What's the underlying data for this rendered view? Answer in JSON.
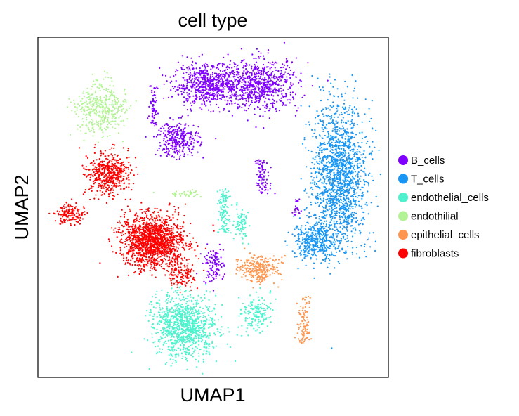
{
  "chart_data": {
    "type": "scatter",
    "title": "cell type",
    "xlabel": "UMAP1",
    "ylabel": "UMAP2",
    "xlim": [
      0,
      100
    ],
    "ylim": [
      0,
      100
    ],
    "ticks": "none",
    "grid": false,
    "legend_position": "right",
    "series": [
      {
        "name": "B_cells",
        "color": "#8000ff",
        "clusters": [
          {
            "cx": 49,
            "cy": 86,
            "sx": 7,
            "sy": 4,
            "n": 700,
            "shape": "blob"
          },
          {
            "cx": 64,
            "cy": 86,
            "sx": 7,
            "sy": 5,
            "n": 650,
            "shape": "blob"
          },
          {
            "cx": 40,
            "cy": 70,
            "sx": 4,
            "sy": 3.5,
            "n": 300,
            "shape": "blob"
          },
          {
            "cx": 33,
            "cy": 80,
            "sx": 0.7,
            "sy": 6,
            "n": 70,
            "shape": "strand"
          },
          {
            "cx": 64,
            "cy": 59,
            "sx": 1.2,
            "sy": 5,
            "n": 90,
            "shape": "strand"
          },
          {
            "cx": 50,
            "cy": 33,
            "sx": 2,
            "sy": 3.5,
            "n": 110,
            "shape": "blob"
          },
          {
            "cx": 74,
            "cy": 50,
            "sx": 0.8,
            "sy": 2.5,
            "n": 25,
            "shape": "strand"
          }
        ]
      },
      {
        "name": "T_cells",
        "color": "#1996f3",
        "clusters": [
          {
            "cx": 86,
            "cy": 59,
            "sx": 5,
            "sy": 14,
            "n": 1600,
            "shape": "blob"
          },
          {
            "cx": 79,
            "cy": 40,
            "sx": 4,
            "sy": 4,
            "n": 400,
            "shape": "blob"
          }
        ]
      },
      {
        "name": "endothelial_cells",
        "color": "#4df3ce",
        "clusters": [
          {
            "cx": 42,
            "cy": 15,
            "sx": 6,
            "sy": 6,
            "n": 1000,
            "shape": "blob"
          },
          {
            "cx": 53,
            "cy": 49,
            "sx": 1,
            "sy": 6.5,
            "n": 120,
            "shape": "strand"
          },
          {
            "cx": 58,
            "cy": 45,
            "sx": 1.3,
            "sy": 3,
            "n": 80,
            "shape": "blob"
          },
          {
            "cx": 62,
            "cy": 19,
            "sx": 3,
            "sy": 3.5,
            "n": 160,
            "shape": "blob"
          }
        ]
      },
      {
        "name": "endothilial",
        "color": "#b3f396",
        "clusters": [
          {
            "cx": 18,
            "cy": 79,
            "sx": 5,
            "sy": 5,
            "n": 420,
            "shape": "blob"
          },
          {
            "cx": 42,
            "cy": 54,
            "sx": 2.5,
            "sy": 0.6,
            "n": 40,
            "shape": "blob"
          }
        ]
      },
      {
        "name": "epithelial_cells",
        "color": "#ff964f",
        "clusters": [
          {
            "cx": 63,
            "cy": 32,
            "sx": 4,
            "sy": 2.5,
            "n": 280,
            "shape": "blob"
          },
          {
            "cx": 76,
            "cy": 17,
            "sx": 1,
            "sy": 7,
            "n": 110,
            "shape": "strand"
          }
        ]
      },
      {
        "name": "fibroblasts",
        "color": "#ff0000",
        "clusters": [
          {
            "cx": 33,
            "cy": 40,
            "sx": 6,
            "sy": 5,
            "n": 1500,
            "shape": "blob"
          },
          {
            "cx": 20,
            "cy": 60,
            "sx": 4,
            "sy": 4,
            "n": 500,
            "shape": "blob"
          },
          {
            "cx": 9,
            "cy": 48,
            "sx": 3,
            "sy": 2,
            "n": 150,
            "shape": "blob"
          },
          {
            "cx": 41,
            "cy": 30,
            "sx": 2.5,
            "sy": 2.5,
            "n": 120,
            "shape": "blob"
          }
        ]
      }
    ]
  }
}
